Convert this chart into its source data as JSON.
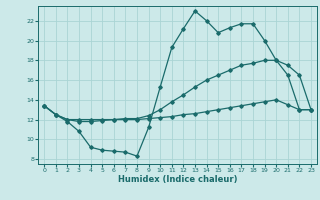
{
  "xlabel": "Humidex (Indice chaleur)",
  "bg_color": "#cce9e9",
  "grid_color": "#aad4d4",
  "line_color": "#1a6b6b",
  "markersize": 1.8,
  "linewidth": 0.9,
  "xlim": [
    -0.5,
    23.5
  ],
  "ylim": [
    7.5,
    23.5
  ],
  "xticks": [
    0,
    1,
    2,
    3,
    4,
    5,
    6,
    7,
    8,
    9,
    10,
    11,
    12,
    13,
    14,
    15,
    16,
    17,
    18,
    19,
    20,
    21,
    22,
    23
  ],
  "yticks": [
    8,
    10,
    12,
    14,
    16,
    18,
    20,
    22
  ],
  "line1_x": [
    0,
    1,
    2,
    3,
    4,
    5,
    6,
    7,
    8,
    9,
    10,
    11,
    12,
    13,
    14,
    15,
    16,
    17,
    18,
    19,
    20,
    21,
    22,
    23
  ],
  "line1_y": [
    13.4,
    12.5,
    11.8,
    10.8,
    9.2,
    8.9,
    8.8,
    8.7,
    8.3,
    11.2,
    15.3,
    19.3,
    21.2,
    23.0,
    22.0,
    20.8,
    21.3,
    21.7,
    21.7,
    20.0,
    18.0,
    16.5,
    13.0,
    13.0
  ],
  "line2_x": [
    0,
    1,
    2,
    3,
    4,
    5,
    6,
    7,
    8,
    9,
    10,
    11,
    12,
    13,
    14,
    15,
    16,
    17,
    18,
    19,
    20,
    21,
    22,
    23
  ],
  "line2_y": [
    13.4,
    12.5,
    12.0,
    12.0,
    12.0,
    12.0,
    12.0,
    12.0,
    12.0,
    12.1,
    12.2,
    12.3,
    12.5,
    12.6,
    12.8,
    13.0,
    13.2,
    13.4,
    13.6,
    13.8,
    14.0,
    13.5,
    13.0,
    13.0
  ],
  "line3_x": [
    0,
    1,
    2,
    3,
    4,
    5,
    6,
    7,
    8,
    9,
    10,
    11,
    12,
    13,
    14,
    15,
    16,
    17,
    18,
    19,
    20,
    21,
    22,
    23
  ],
  "line3_y": [
    13.4,
    12.5,
    12.0,
    11.8,
    11.8,
    11.9,
    12.0,
    12.1,
    12.1,
    12.4,
    13.0,
    13.8,
    14.5,
    15.3,
    16.0,
    16.5,
    17.0,
    17.5,
    17.7,
    18.0,
    18.0,
    17.5,
    16.5,
    13.0
  ]
}
